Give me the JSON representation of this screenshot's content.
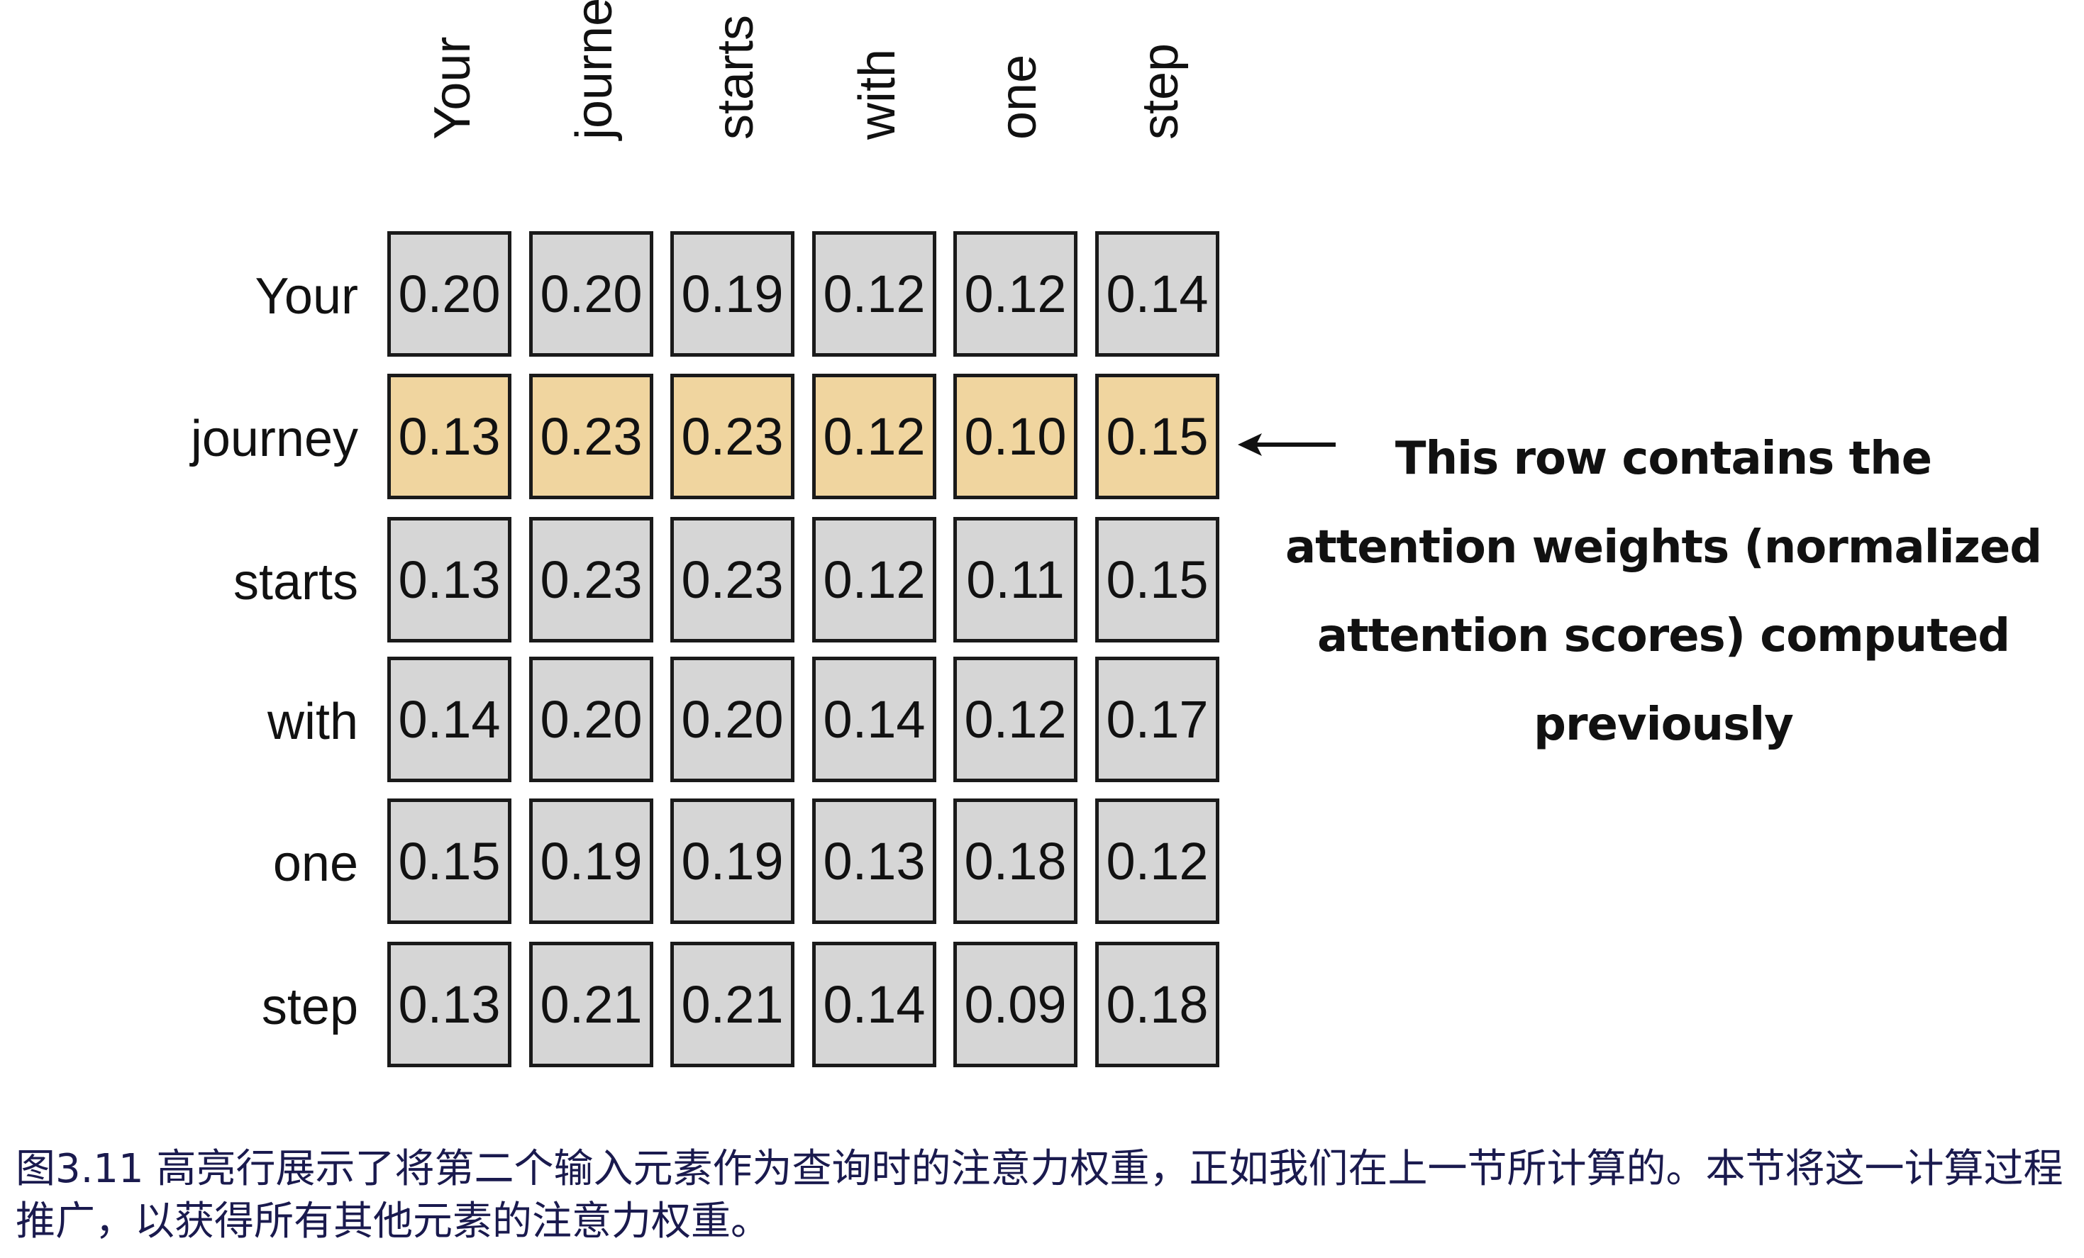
{
  "figure": {
    "columns": [
      "Your",
      "journey",
      "starts",
      "with",
      "one",
      "step"
    ],
    "rows": [
      "Your",
      "journey",
      "starts",
      "with",
      "one",
      "step"
    ],
    "highlighted_row": "journey",
    "colors": {
      "cell": "#d6d6d6",
      "highlight": "#f0d59f",
      "border": "#1a1a1a",
      "caption": "#1a1a4e"
    },
    "annotation": [
      "This row contains the",
      "attention weights (normalized",
      "attention scores) computed",
      "previously"
    ],
    "caption": "图3.11 高亮行展示了将第二个输入元素作为查询时的注意力权重，正如我们在上一节所计算的。本节将这一计算过程推广，以获得所有其他元素的注意力权重。"
  },
  "chart_data": {
    "type": "heatmap",
    "x": [
      "Your",
      "journey",
      "starts",
      "with",
      "one",
      "step"
    ],
    "y": [
      "Your",
      "journey",
      "starts",
      "with",
      "one",
      "step"
    ],
    "values": [
      [
        "0.20",
        "0.20",
        "0.19",
        "0.12",
        "0.12",
        "0.14"
      ],
      [
        "0.13",
        "0.23",
        "0.23",
        "0.12",
        "0.10",
        "0.15"
      ],
      [
        "0.13",
        "0.23",
        "0.23",
        "0.12",
        "0.11",
        "0.15"
      ],
      [
        "0.14",
        "0.20",
        "0.20",
        "0.14",
        "0.12",
        "0.17"
      ],
      [
        "0.15",
        "0.19",
        "0.19",
        "0.13",
        "0.18",
        "0.12"
      ],
      [
        "0.13",
        "0.21",
        "0.21",
        "0.14",
        "0.09",
        "0.18"
      ]
    ]
  }
}
